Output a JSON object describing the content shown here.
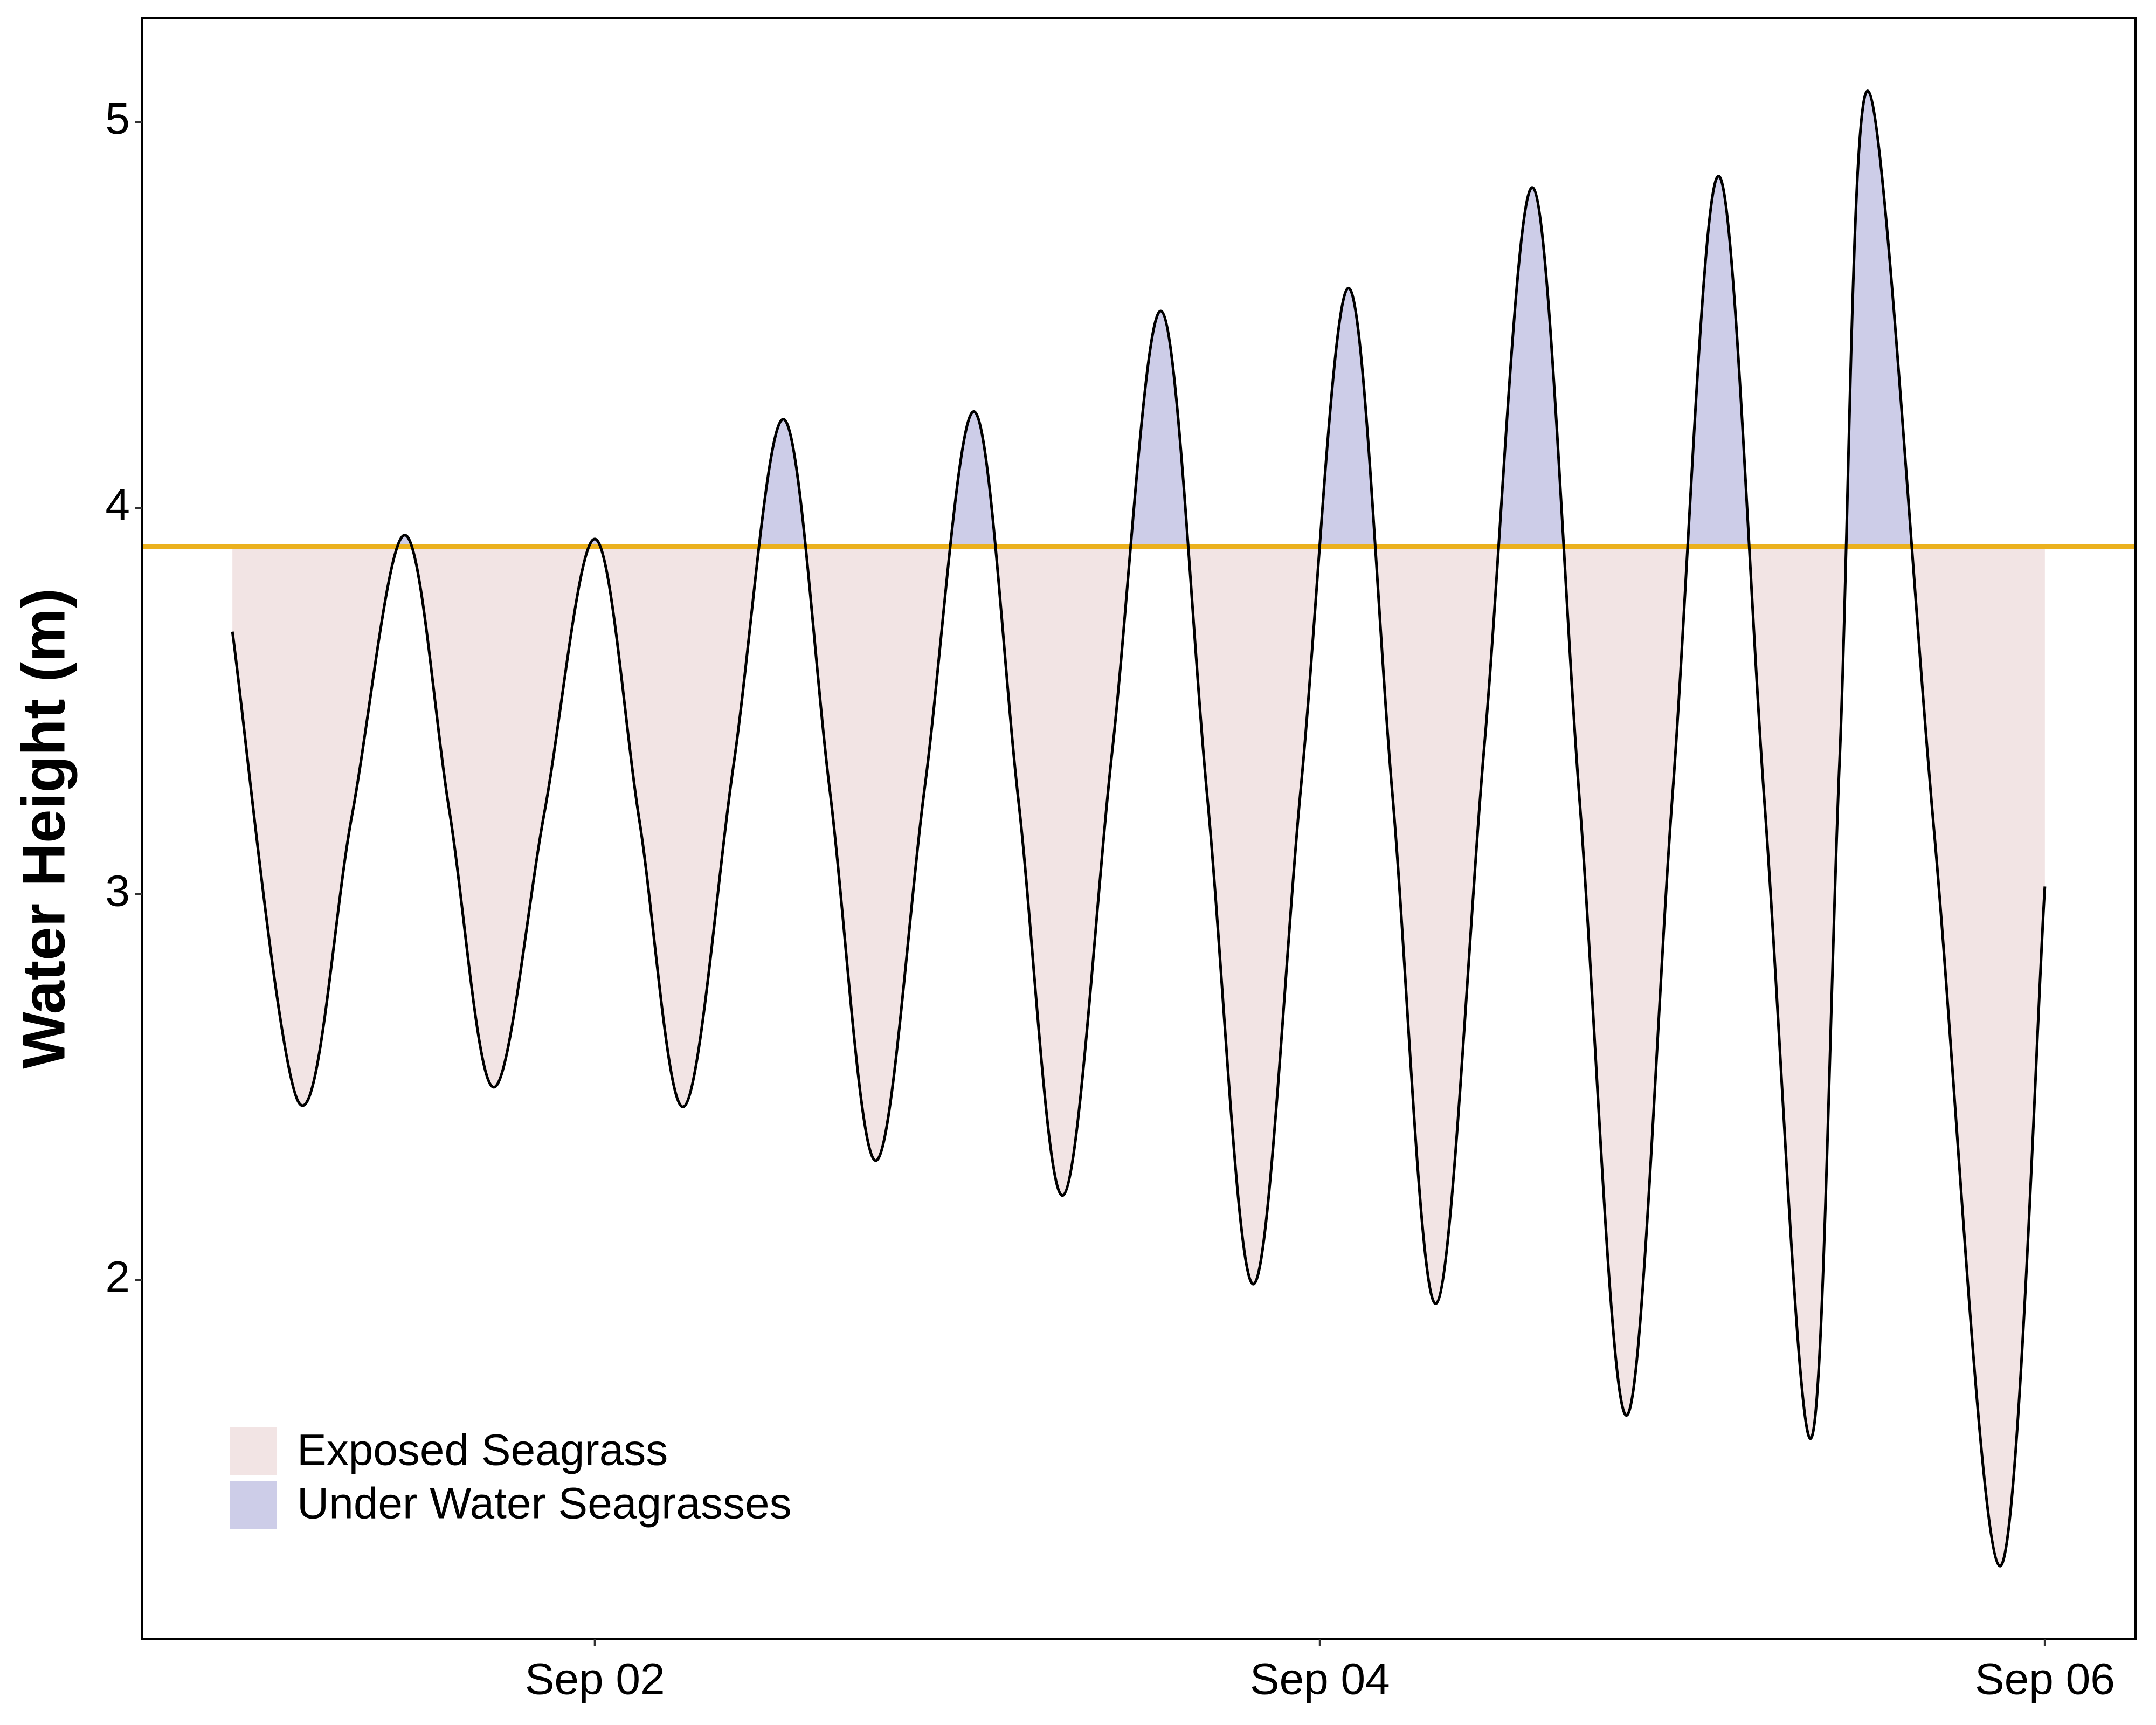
{
  "chart_data": {
    "type": "line",
    "y_label": "Water Height (m)",
    "x": [
      0,
      4.4,
      7.9,
      11.4,
      14.35,
      17.3,
      20.65,
      24.0,
      26.95,
      29.9,
      33.2,
      36.5,
      39.55,
      42.6,
      45.85,
      49.1,
      52.05,
      55.0,
      58.25,
      61.5,
      64.55,
      67.6,
      70.75,
      73.9,
      76.8,
      79.7,
      82.9,
      86.1,
      89.2,
      92.3,
      95.35,
      98.4,
      101.45,
      104.5,
      106.4,
      108.3,
      112.65,
      117.0,
      120
    ],
    "values": [
      3.68,
      2.46,
      3.2,
      3.93,
      3.22,
      2.5,
      3.21,
      3.92,
      3.19,
      2.45,
      3.34,
      4.23,
      3.27,
      2.31,
      3.28,
      4.25,
      3.24,
      2.22,
      3.37,
      4.51,
      3.25,
      1.99,
      3.28,
      4.57,
      3.26,
      1.94,
      3.39,
      4.83,
      3.24,
      1.65,
      3.26,
      4.86,
      3.23,
      1.59,
      3.34,
      5.08,
      3.17,
      1.26,
      3.02
    ],
    "line_color": "#000000",
    "reference_line": {
      "value": 3.9,
      "color": "#ebb11e"
    },
    "fills": [
      {
        "name": "Exposed Seagrass",
        "color": "#f2e4e4"
      },
      {
        "name": "Under Water Seagrasses",
        "color": "#cdcde8"
      }
    ],
    "xlim": [
      -6,
      126
    ],
    "xticks": [
      {
        "value": 24,
        "label": "Sep 02"
      },
      {
        "value": 72,
        "label": "Sep 04"
      },
      {
        "value": 120,
        "label": "Sep 06"
      }
    ],
    "ylim": [
      1.07,
      5.27
    ],
    "yticks": [
      2,
      3,
      4,
      5
    ],
    "legend": "bottom-left"
  }
}
